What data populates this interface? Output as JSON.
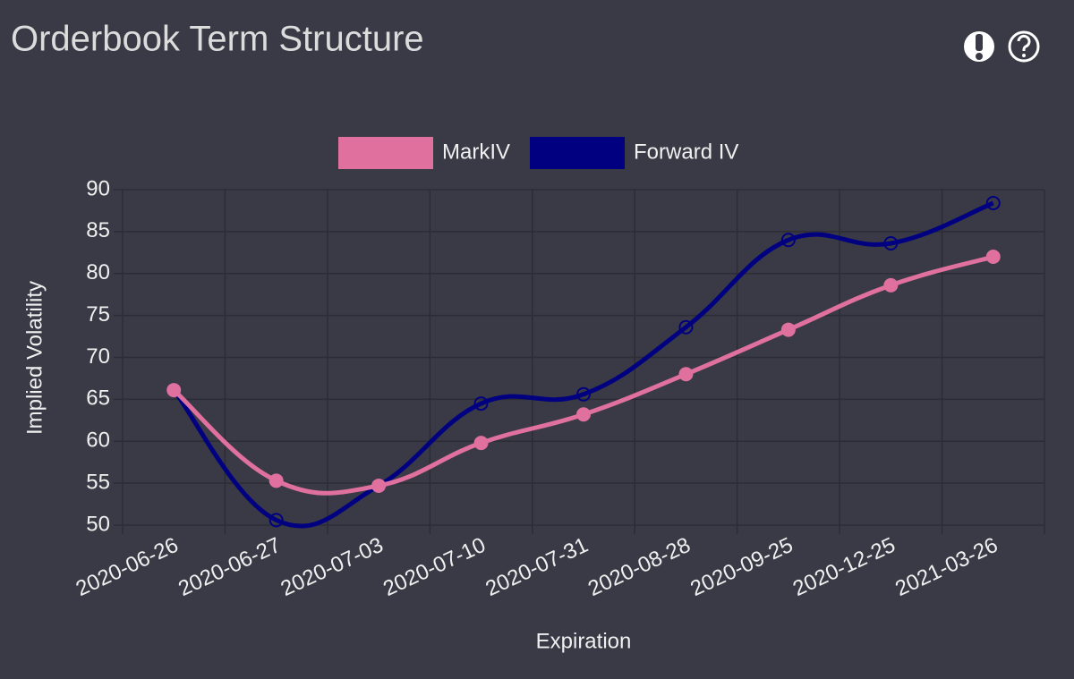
{
  "chart_data": {
    "type": "line",
    "title": "Orderbook Term Structure",
    "xlabel": "Expiration",
    "ylabel": "Implied Volatility",
    "categories": [
      "2020-06-26",
      "2020-06-27",
      "2020-07-03",
      "2020-07-10",
      "2020-07-31",
      "2020-08-28",
      "2020-09-25",
      "2020-12-25",
      "2021-03-26"
    ],
    "series": [
      {
        "name": "MarkIV",
        "color": "#e0719f",
        "values": [
          66.1,
          55.3,
          54.7,
          59.8,
          63.2,
          68.0,
          73.3,
          78.6,
          82.0
        ]
      },
      {
        "name": "Forward IV",
        "color": "#000080",
        "values": [
          66.1,
          50.6,
          54.7,
          64.5,
          65.6,
          73.6,
          84.0,
          83.6,
          88.4
        ]
      }
    ],
    "ylim": [
      50,
      90
    ],
    "yticks": [
      50,
      55,
      60,
      65,
      70,
      75,
      80,
      85,
      90
    ],
    "grid": true
  }
}
